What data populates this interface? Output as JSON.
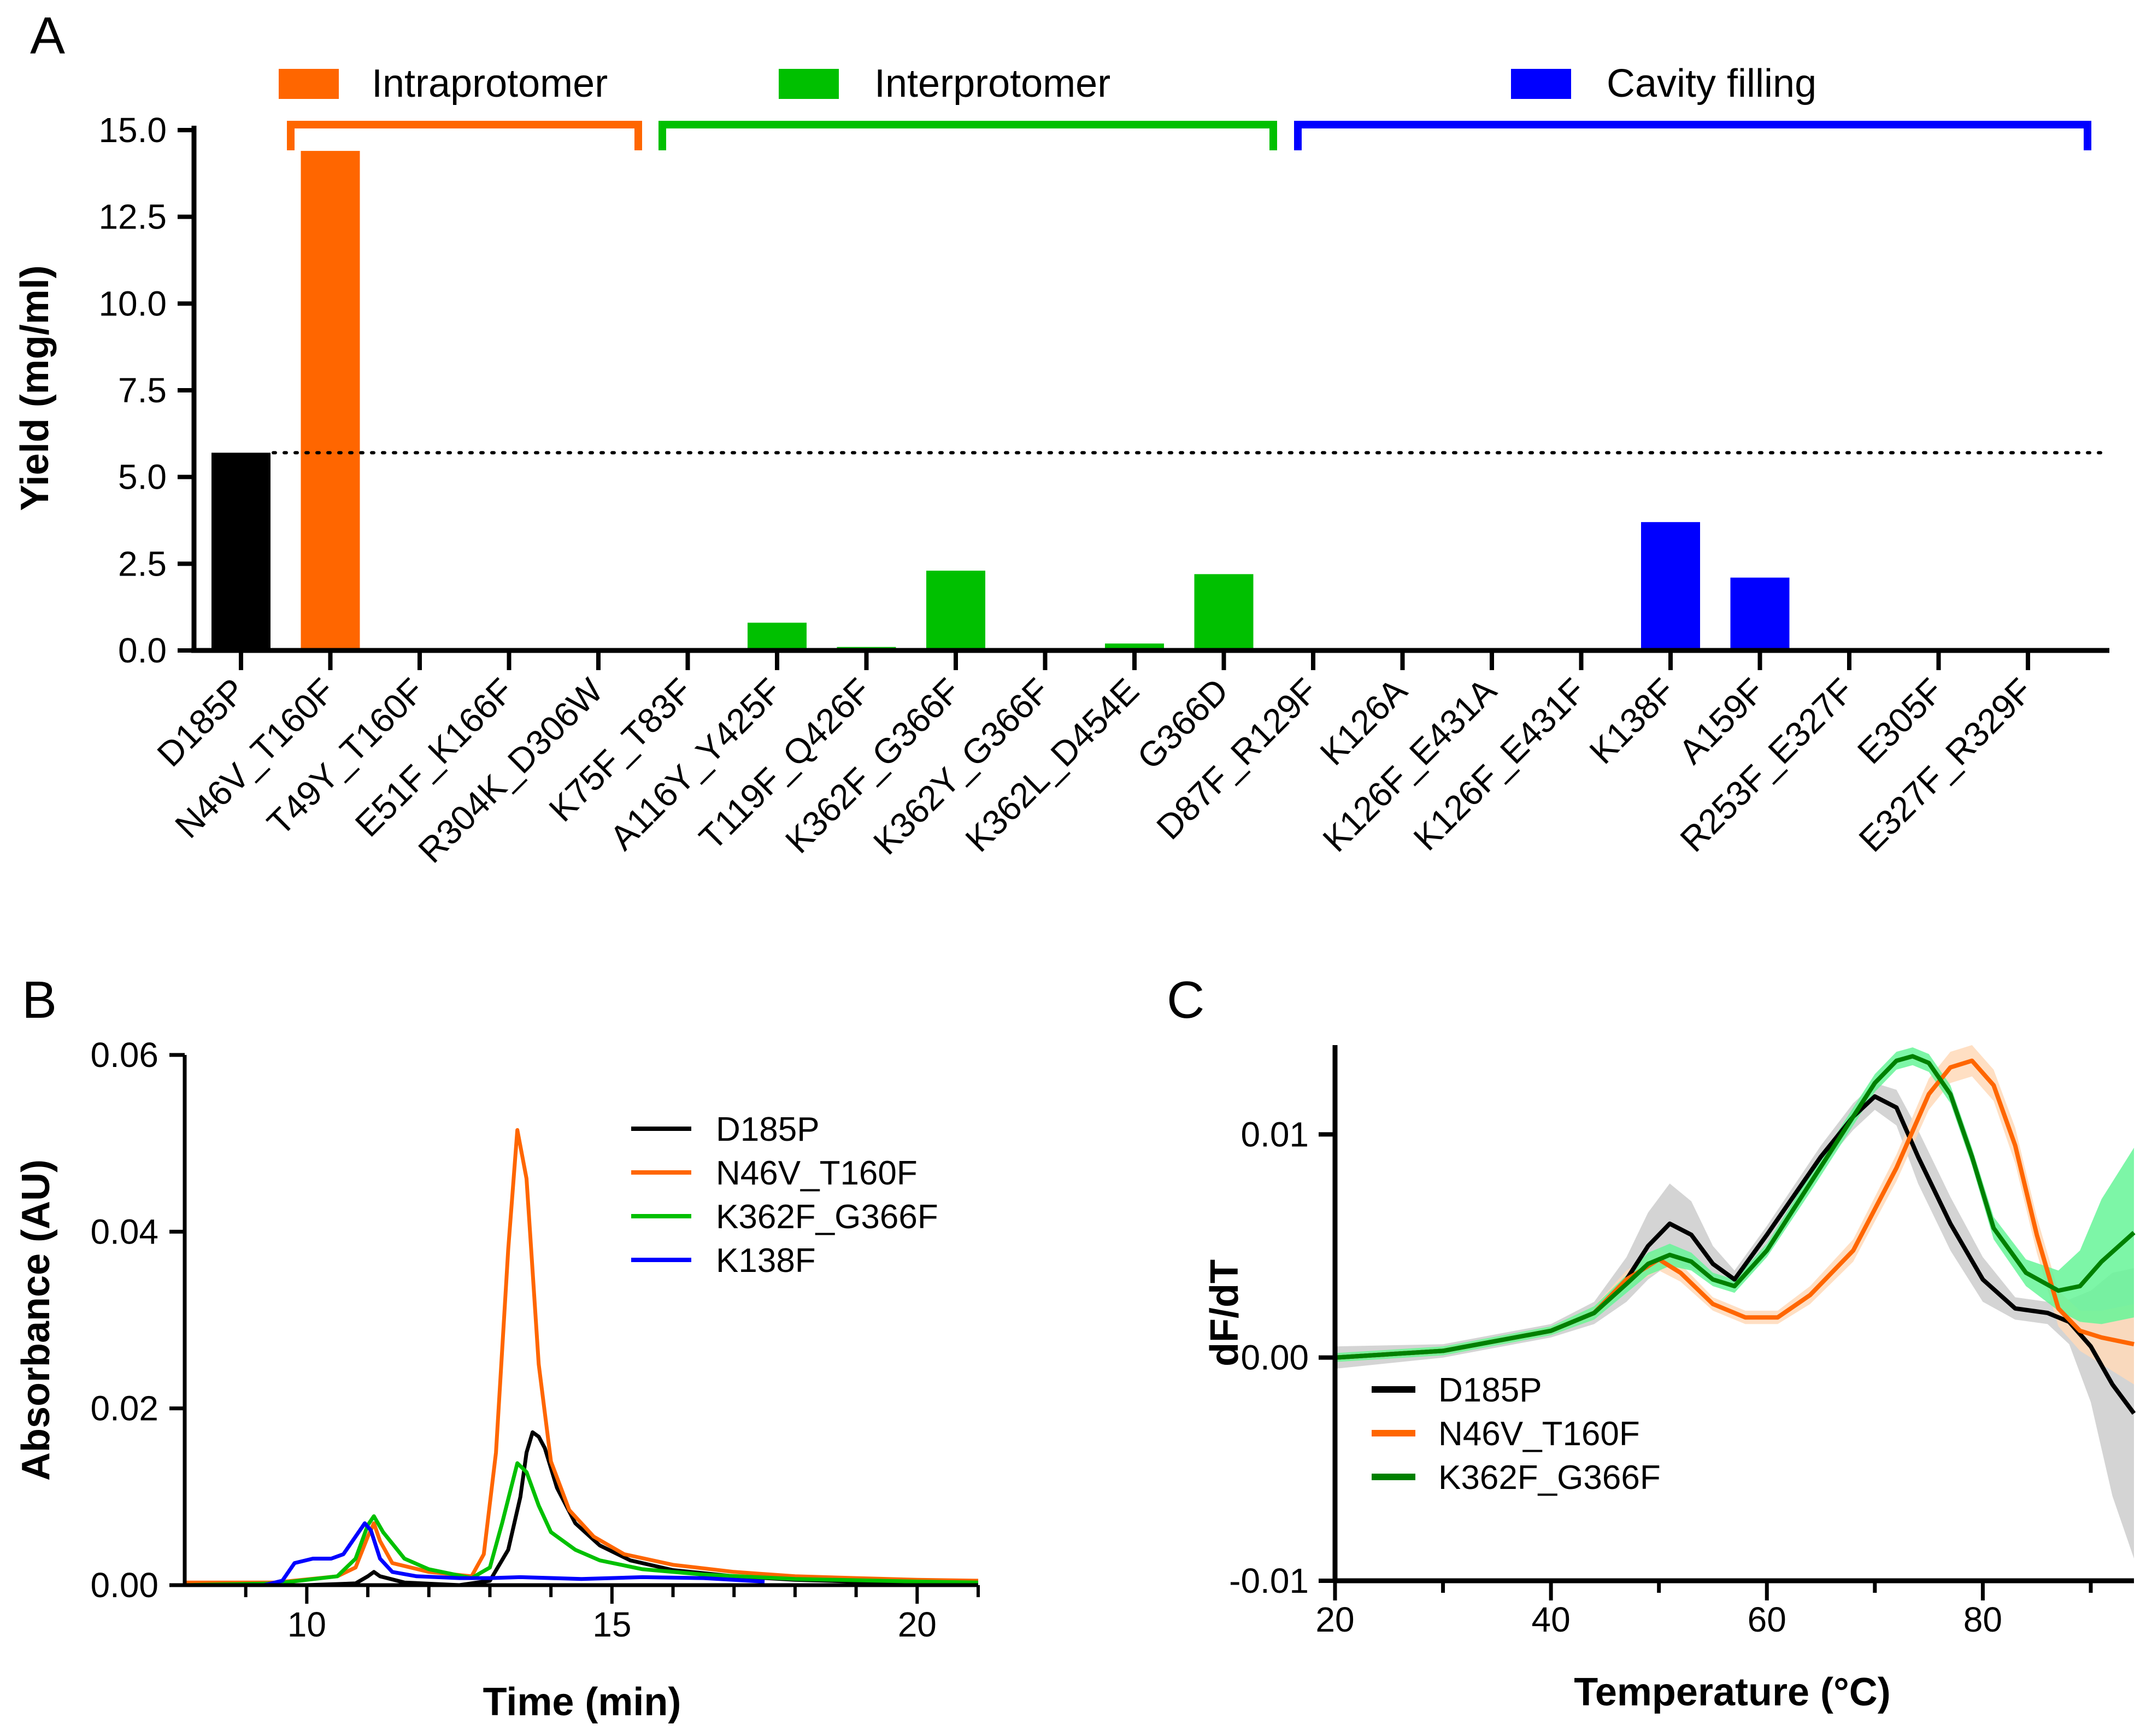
{
  "chart_data": [
    {
      "panel": "A",
      "type": "bar",
      "ylabel": "Yield (mg/ml)",
      "xlabel": "",
      "ylim": [
        0,
        15
      ],
      "yticks": [
        "0.0",
        "2.5",
        "5.0",
        "7.5",
        "10.0",
        "12.5",
        "15.0"
      ],
      "reference_line": 5.7,
      "categories": [
        "D185P",
        "N46V_T160F",
        "T49Y_T160F",
        "E51F_K166F",
        "R304K_D306W",
        "K75F_T83F",
        "A116Y_Y425F",
        "T119F_Q426F",
        "K362F_G366F",
        "K362Y_G366F",
        "K362L_D454E",
        "G366D",
        "D87F_R129F",
        "K126A",
        "K126F_E431A",
        "K126F_E431F",
        "K138F",
        "A159F",
        "R253F_E327F",
        "E305F",
        "E327F_R329F"
      ],
      "values": [
        5.7,
        14.4,
        0,
        0,
        0,
        0,
        0.8,
        0.1,
        2.3,
        0,
        0.2,
        2.2,
        0,
        0,
        0,
        0,
        3.7,
        2.1,
        0,
        0,
        0
      ],
      "bar_groups": [
        "control",
        "intra",
        "intra",
        "intra",
        "intra",
        "inter",
        "inter",
        "inter",
        "inter",
        "inter",
        "inter",
        "inter",
        "cavity",
        "cavity",
        "cavity",
        "cavity",
        "cavity",
        "cavity",
        "cavity",
        "cavity",
        "cavity"
      ],
      "groups": [
        {
          "name": "Intraprotomer",
          "color": "#ff6600",
          "from": 1,
          "to": 4
        },
        {
          "name": "Interprotomer",
          "color": "#00c000",
          "from": 5,
          "to": 11
        },
        {
          "name": "Cavity filling",
          "color": "#0000ff",
          "from": 12,
          "to": 20
        }
      ],
      "control_color": "#000000"
    },
    {
      "panel": "B",
      "type": "line",
      "xlabel": "Time (min)",
      "ylabel": "Absorbance (AU)",
      "xlim": [
        8,
        21
      ],
      "ylim": [
        0,
        0.06
      ],
      "xticks": [
        "10",
        "15",
        "20"
      ],
      "yticks": [
        "0.00",
        "0.02",
        "0.04",
        "0.06"
      ],
      "series": [
        {
          "name": "D185P",
          "color": "#000000",
          "x": [
            8,
            10,
            10.8,
            11.0,
            11.1,
            11.2,
            11.6,
            12.5,
            13.0,
            13.3,
            13.5,
            13.6,
            13.7,
            13.8,
            13.9,
            14.1,
            14.4,
            14.8,
            15.3,
            16,
            17,
            18,
            19,
            20,
            21
          ],
          "y": [
            0,
            0,
            0.0002,
            0.001,
            0.0015,
            0.001,
            0.0003,
            0,
            0.0005,
            0.004,
            0.01,
            0.015,
            0.0173,
            0.0168,
            0.0155,
            0.011,
            0.007,
            0.0045,
            0.0028,
            0.0017,
            0.001,
            0.0006,
            0.0004,
            0.0003,
            0.0002
          ]
        },
        {
          "name": "N46V_T160F",
          "color": "#ff6600",
          "x": [
            8,
            9.5,
            10.5,
            10.8,
            11.0,
            11.1,
            11.2,
            11.4,
            12.0,
            12.7,
            12.9,
            13.1,
            13.3,
            13.45,
            13.6,
            13.8,
            14.0,
            14.3,
            14.7,
            15.2,
            16,
            17,
            18,
            19,
            20,
            21
          ],
          "y": [
            0.0003,
            0.0003,
            0.001,
            0.002,
            0.0055,
            0.007,
            0.005,
            0.0025,
            0.0015,
            0.001,
            0.0035,
            0.015,
            0.038,
            0.0515,
            0.046,
            0.025,
            0.014,
            0.0085,
            0.0055,
            0.0035,
            0.0023,
            0.0015,
            0.001,
            0.0008,
            0.0006,
            0.0005
          ]
        },
        {
          "name": "K362F_G366F",
          "color": "#00c000",
          "x": [
            8,
            9.5,
            10.5,
            10.8,
            11.0,
            11.1,
            11.25,
            11.6,
            12.0,
            12.7,
            13.0,
            13.2,
            13.45,
            13.6,
            13.8,
            14.0,
            14.4,
            14.8,
            15.5,
            16.5,
            18,
            20,
            21
          ],
          "y": [
            0,
            0.0002,
            0.001,
            0.003,
            0.0068,
            0.0078,
            0.006,
            0.003,
            0.0018,
            0.0008,
            0.002,
            0.007,
            0.0138,
            0.0128,
            0.009,
            0.006,
            0.004,
            0.0028,
            0.0018,
            0.0012,
            0.0007,
            0.0004,
            0.0003
          ]
        },
        {
          "name": "K138F",
          "color": "#0000ff",
          "x": [
            8,
            9.3,
            9.6,
            9.8,
            10.1,
            10.4,
            10.6,
            10.8,
            10.95,
            11.05,
            11.2,
            11.4,
            11.8,
            12.5,
            13.0,
            13.5,
            14.5,
            15.5,
            16.5,
            17.5
          ],
          "y": [
            0,
            0,
            0.0005,
            0.0025,
            0.003,
            0.003,
            0.0035,
            0.0055,
            0.007,
            0.0062,
            0.003,
            0.0015,
            0.001,
            0.0008,
            0.0008,
            0.0009,
            0.0007,
            0.0009,
            0.0008,
            0.0004
          ]
        }
      ]
    },
    {
      "panel": "C",
      "type": "line",
      "xlabel": "Temperature (°C)",
      "ylabel": "dF/dT",
      "xlim": [
        20,
        94
      ],
      "ylim": [
        -0.01,
        0.014
      ],
      "xticks": [
        "20",
        "40",
        "60",
        "80"
      ],
      "yticks": [
        "-0.01",
        "0.00",
        "0.01"
      ],
      "series": [
        {
          "name": "D185P",
          "color": "#000000",
          "band_color": "#cccccc",
          "x": [
            20,
            30,
            40,
            44,
            47,
            49,
            51,
            53,
            55,
            57,
            60,
            65,
            68,
            70,
            72,
            74,
            77,
            80,
            83,
            86,
            88,
            90,
            92,
            94
          ],
          "y": [
            0,
            0.0003,
            0.0012,
            0.002,
            0.0035,
            0.005,
            0.006,
            0.0055,
            0.0042,
            0.0035,
            0.0055,
            0.009,
            0.0108,
            0.0117,
            0.0112,
            0.009,
            0.006,
            0.0035,
            0.0022,
            0.002,
            0.0016,
            0.0005,
            -0.0012,
            -0.0025
          ],
          "band": [
            0.0005,
            0.0003,
            0.0003,
            0.0005,
            0.001,
            0.0015,
            0.0018,
            0.0015,
            0.0008,
            0.0004,
            0.0004,
            0.0005,
            0.0006,
            0.0006,
            0.0008,
            0.0012,
            0.0012,
            0.001,
            0.0005,
            0.0005,
            0.001,
            0.0025,
            0.005,
            0.0065
          ]
        },
        {
          "name": "N46V_T160F",
          "color": "#ff6600",
          "band_color": "#ffd9b8",
          "x": [
            20,
            30,
            40,
            44,
            47,
            50,
            52,
            55,
            58,
            61,
            64,
            68,
            72,
            75,
            77,
            79,
            81,
            83,
            85,
            87,
            89,
            91,
            94
          ],
          "y": [
            0,
            0.0003,
            0.0012,
            0.002,
            0.0035,
            0.0044,
            0.0038,
            0.0024,
            0.0018,
            0.0018,
            0.0028,
            0.0048,
            0.0085,
            0.0118,
            0.013,
            0.0133,
            0.0122,
            0.0095,
            0.0055,
            0.0022,
            0.0012,
            0.0009,
            0.0006
          ],
          "band": [
            0.0002,
            0.0002,
            0.0002,
            0.0003,
            0.0004,
            0.0005,
            0.0004,
            0.0003,
            0.0003,
            0.0003,
            0.0004,
            0.0005,
            0.0006,
            0.0007,
            0.0007,
            0.0007,
            0.0007,
            0.0008,
            0.0008,
            0.0008,
            0.0009,
            0.0012,
            0.0018
          ]
        },
        {
          "name": "K362F_G366F",
          "color": "#008000",
          "band_color": "#66f598",
          "x": [
            20,
            30,
            40,
            44,
            47,
            49,
            51,
            53,
            55,
            57,
            60,
            64,
            68,
            70,
            72,
            73.5,
            75,
            77,
            79,
            81,
            84,
            87,
            89,
            91,
            94
          ],
          "y": [
            0,
            0.0003,
            0.0012,
            0.002,
            0.0033,
            0.0042,
            0.0046,
            0.0043,
            0.0035,
            0.0032,
            0.0048,
            0.0078,
            0.0108,
            0.0123,
            0.0133,
            0.0135,
            0.0132,
            0.0118,
            0.009,
            0.0058,
            0.0038,
            0.003,
            0.0032,
            0.0043,
            0.0056
          ],
          "band": [
            0.0002,
            0.0002,
            0.0002,
            0.0003,
            0.0004,
            0.0005,
            0.0005,
            0.0004,
            0.0003,
            0.0003,
            0.0003,
            0.0004,
            0.0004,
            0.0004,
            0.0004,
            0.0004,
            0.0004,
            0.0004,
            0.0004,
            0.0005,
            0.0006,
            0.0009,
            0.0016,
            0.0028,
            0.0038
          ]
        }
      ]
    }
  ],
  "panel_labels": {
    "a": "A",
    "b": "B",
    "c": "C"
  }
}
